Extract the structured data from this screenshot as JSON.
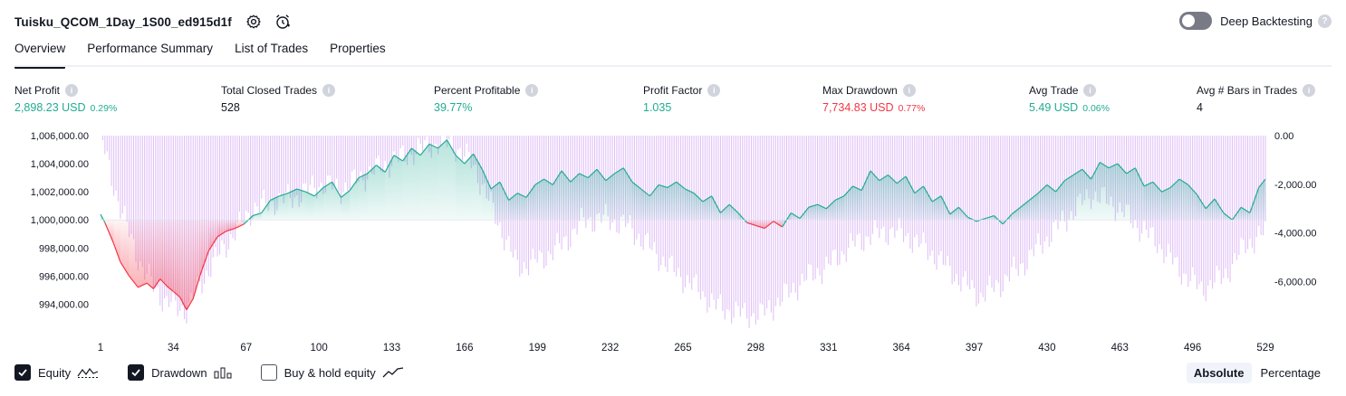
{
  "header": {
    "title": "Tuisku_QCOM_1Day_1S00_ed915d1f",
    "deep_backtesting_label": "Deep Backtesting"
  },
  "tabs": [
    "Overview",
    "Performance Summary",
    "List of Trades",
    "Properties"
  ],
  "metrics": [
    {
      "label": "Net Profit",
      "value": "2,898.23 USD",
      "pct": "0.29%",
      "color": "green"
    },
    {
      "label": "Total Closed Trades",
      "value": "528",
      "pct": "",
      "color": "neutral"
    },
    {
      "label": "Percent Profitable",
      "value": "39.77%",
      "pct": "",
      "color": "green"
    },
    {
      "label": "Profit Factor",
      "value": "1.035",
      "pct": "",
      "color": "green"
    },
    {
      "label": "Max Drawdown",
      "value": "7,734.83 USD",
      "pct": "0.77%",
      "color": "red"
    },
    {
      "label": "Avg Trade",
      "value": "5.49 USD",
      "pct": "0.06%",
      "color": "green"
    },
    {
      "label": "Avg # Bars in Trades",
      "value": "4",
      "pct": "",
      "color": "neutral"
    }
  ],
  "legend": {
    "equity": "Equity",
    "drawdown": "Drawdown",
    "buy_hold": "Buy & hold equity"
  },
  "modes": {
    "absolute": "Absolute",
    "percentage": "Percentage"
  },
  "colors": {
    "green": "#22ab94",
    "red": "#f23645",
    "drawdown": "#c98ef0",
    "text": "#131722"
  },
  "chart_data": {
    "type": "area",
    "left_axis": {
      "ticks": [
        "1,006,000.00",
        "1,004,000.00",
        "1,002,000.00",
        "1,000,000.00",
        "998,000.00",
        "996,000.00",
        "994,000.00"
      ],
      "range": [
        993000,
        1006000
      ],
      "baseline": 1000000
    },
    "right_axis": {
      "ticks": [
        "0.00",
        "-2,000.00",
        "-4,000.00",
        "-6,000.00"
      ],
      "range": [
        -7500,
        0
      ]
    },
    "x_ticks": [
      "1",
      "34",
      "67",
      "100",
      "133",
      "166",
      "199",
      "232",
      "265",
      "298",
      "331",
      "364",
      "397",
      "430",
      "463",
      "496",
      "529"
    ],
    "x_range": [
      1,
      529
    ],
    "series": [
      {
        "name": "Equity",
        "x": [
          1,
          3,
          7,
          10,
          14,
          18,
          22,
          25,
          28,
          31,
          34,
          37,
          40,
          43,
          46,
          50,
          54,
          58,
          62,
          66,
          70,
          74,
          78,
          82,
          86,
          90,
          94,
          98,
          102,
          106,
          110,
          114,
          118,
          122,
          126,
          130,
          134,
          138,
          142,
          146,
          150,
          154,
          158,
          162,
          166,
          170,
          174,
          178,
          182,
          186,
          190,
          194,
          198,
          202,
          206,
          210,
          214,
          218,
          222,
          226,
          230,
          234,
          238,
          242,
          246,
          250,
          254,
          258,
          262,
          266,
          270,
          274,
          278,
          282,
          286,
          290,
          294,
          298,
          302,
          306,
          310,
          314,
          318,
          322,
          326,
          330,
          334,
          338,
          342,
          346,
          350,
          354,
          358,
          362,
          366,
          370,
          374,
          378,
          382,
          386,
          390,
          394,
          398,
          402,
          406,
          410,
          414,
          418,
          422,
          426,
          430,
          434,
          438,
          442,
          446,
          450,
          454,
          458,
          462,
          466,
          470,
          474,
          478,
          482,
          486,
          490,
          494,
          498,
          502,
          506,
          510,
          514,
          518,
          522,
          526,
          529
        ],
        "values": [
          1000400,
          999800,
          998300,
          997000,
          996000,
          995200,
          995500,
          995100,
          995800,
          995300,
          994900,
          994500,
          993600,
          994400,
          996000,
          997800,
          998800,
          999200,
          999400,
          999700,
          1000300,
          1000500,
          1001400,
          1001700,
          1001900,
          1002200,
          1002000,
          1001700,
          1002300,
          1002700,
          1001600,
          1002100,
          1003000,
          1003300,
          1003900,
          1003400,
          1004600,
          1004200,
          1005100,
          1004600,
          1005400,
          1005100,
          1005700,
          1004600,
          1004000,
          1004700,
          1003600,
          1002200,
          1002700,
          1001400,
          1001900,
          1001600,
          1002500,
          1002900,
          1002500,
          1003500,
          1002700,
          1003300,
          1003000,
          1003600,
          1002800,
          1003300,
          1003700,
          1002700,
          1002200,
          1001700,
          1002500,
          1002300,
          1002700,
          1002200,
          1001900,
          1001300,
          1001700,
          1000500,
          1001100,
          1000500,
          999800,
          999600,
          999400,
          999900,
          999500,
          1000500,
          1000100,
          1000900,
          1001100,
          1000800,
          1001400,
          1001700,
          1002400,
          1002100,
          1003500,
          1002800,
          1003200,
          1002600,
          1003100,
          1001900,
          1002400,
          1001300,
          1001700,
          1000400,
          1000900,
          1000200,
          999900,
          1000100,
          1000300,
          999700,
          1000400,
          1000900,
          1001400,
          1001900,
          1002500,
          1002000,
          1002800,
          1003200,
          1003600,
          1002900,
          1004100,
          1003700,
          1004000,
          1003300,
          1003700,
          1002400,
          1002700,
          1002000,
          1002300,
          1002900,
          1002500,
          1001800,
          1000800,
          1001500,
          1000500,
          1000000,
          1000900,
          1000500,
          1002300,
          1002900
        ]
      },
      {
        "name": "Drawdown",
        "x": [
          1,
          10,
          20,
          30,
          40,
          50,
          60,
          70,
          80,
          90,
          100,
          110,
          120,
          130,
          140,
          150,
          160,
          170,
          180,
          190,
          200,
          210,
          220,
          230,
          240,
          250,
          260,
          270,
          280,
          290,
          300,
          310,
          320,
          330,
          340,
          350,
          360,
          370,
          380,
          390,
          400,
          410,
          420,
          430,
          440,
          450,
          460,
          470,
          480,
          490,
          500,
          510,
          520,
          529
        ],
        "values": [
          0,
          -3000,
          -5500,
          -6800,
          -7200,
          -5500,
          -4200,
          -3000,
          -2700,
          -2500,
          -2000,
          -2200,
          -1700,
          -1200,
          -800,
          -400,
          -300,
          -1200,
          -3300,
          -5400,
          -5100,
          -4500,
          -3500,
          -3400,
          -3700,
          -4600,
          -5500,
          -6200,
          -7000,
          -7300,
          -7400,
          -6700,
          -5900,
          -5400,
          -4600,
          -4100,
          -3900,
          -4300,
          -5000,
          -5900,
          -6600,
          -6000,
          -5200,
          -4200,
          -3300,
          -2400,
          -2800,
          -3600,
          -4400,
          -5500,
          -6300,
          -5800,
          -4500,
          -4000
        ]
      }
    ]
  }
}
